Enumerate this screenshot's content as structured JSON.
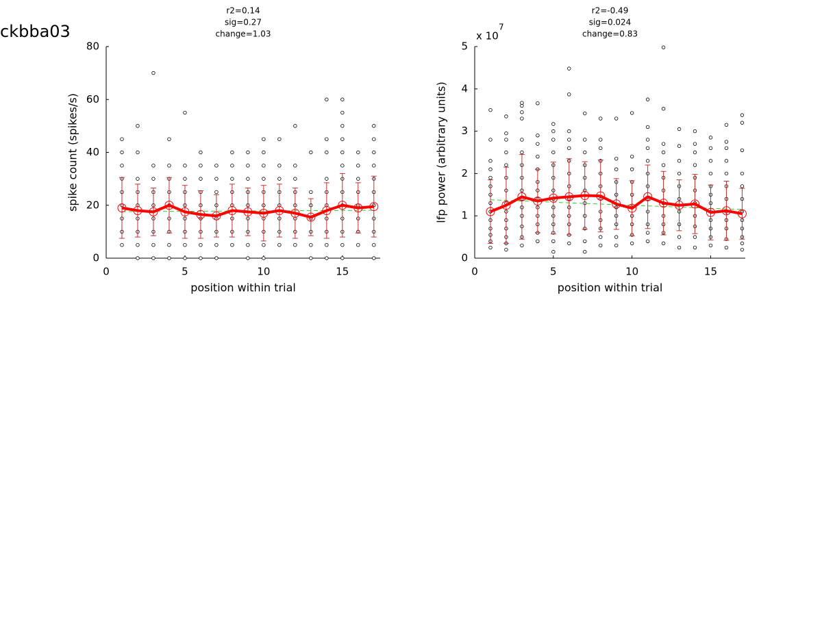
{
  "title": "ckbba03",
  "chart_data": [
    {
      "type": "scatter",
      "title": [
        "r2=0.14",
        "sig=0.27",
        "change=1.03"
      ],
      "x_label": "position within trial",
      "y_label": "spike count (spikes/s)",
      "xlim": [
        0,
        17.4
      ],
      "xticks": [
        0,
        5,
        10,
        15
      ],
      "ylim": [
        0,
        80
      ],
      "yticks": [
        0,
        20,
        40,
        60,
        80
      ],
      "point_color": "#000000",
      "groups": [
        {
          "x": 1,
          "values": [
            5,
            10,
            15,
            20,
            25,
            30,
            35,
            40,
            45
          ]
        },
        {
          "x": 2,
          "values": [
            0,
            5,
            10,
            15,
            20,
            25,
            30,
            40,
            50
          ]
        },
        {
          "x": 3,
          "values": [
            0,
            5,
            10,
            15,
            20,
            25,
            30,
            35,
            70
          ]
        },
        {
          "x": 4,
          "values": [
            0,
            5,
            10,
            15,
            20,
            25,
            30,
            35,
            45
          ]
        },
        {
          "x": 5,
          "values": [
            0,
            5,
            10,
            15,
            20,
            25,
            30,
            35,
            55
          ]
        },
        {
          "x": 6,
          "values": [
            0,
            5,
            10,
            15,
            20,
            25,
            30,
            35,
            40
          ]
        },
        {
          "x": 7,
          "values": [
            0,
            5,
            10,
            15,
            20,
            25,
            30,
            35
          ]
        },
        {
          "x": 8,
          "values": [
            5,
            10,
            15,
            20,
            25,
            30,
            35,
            40
          ]
        },
        {
          "x": 9,
          "values": [
            0,
            5,
            10,
            15,
            20,
            25,
            30,
            35,
            40
          ]
        },
        {
          "x": 10,
          "values": [
            0,
            5,
            10,
            15,
            20,
            25,
            30,
            35,
            40,
            45
          ]
        },
        {
          "x": 11,
          "values": [
            5,
            10,
            15,
            20,
            25,
            30,
            35,
            45
          ]
        },
        {
          "x": 12,
          "values": [
            5,
            10,
            15,
            20,
            25,
            30,
            35,
            50
          ]
        },
        {
          "x": 13,
          "values": [
            0,
            5,
            10,
            15,
            20,
            25,
            40
          ]
        },
        {
          "x": 14,
          "values": [
            0,
            5,
            10,
            15,
            20,
            25,
            30,
            40,
            45,
            60
          ]
        },
        {
          "x": 15,
          "values": [
            0,
            5,
            10,
            15,
            20,
            25,
            30,
            35,
            40,
            45,
            50,
            55,
            60
          ]
        },
        {
          "x": 16,
          "values": [
            5,
            10,
            15,
            20,
            25,
            30,
            35,
            40
          ]
        },
        {
          "x": 17,
          "values": [
            0,
            5,
            10,
            15,
            20,
            25,
            30,
            35,
            40,
            45,
            50
          ]
        }
      ],
      "mean": {
        "color": "#ff0000",
        "error_color": "#c03030",
        "x": [
          1,
          2,
          3,
          4,
          5,
          6,
          7,
          8,
          9,
          10,
          11,
          12,
          13,
          14,
          15,
          16,
          17
        ],
        "values": [
          19,
          18,
          17.5,
          20,
          17.5,
          16.5,
          16,
          18,
          17.5,
          17,
          18,
          17,
          15.5,
          18,
          20,
          19,
          19.5
        ],
        "errors": [
          11.5,
          10,
          9,
          10.5,
          10,
          9,
          8,
          10,
          9,
          10.5,
          10,
          9.5,
          7,
          10.5,
          12,
          9.5,
          11.5
        ]
      },
      "fit": {
        "color": "#33cc33",
        "x": [
          1,
          17
        ],
        "values": [
          17.6,
          18.1
        ]
      }
    },
    {
      "type": "scatter",
      "title": [
        "r2=-0.49",
        "sig=0.024",
        "change=0.83"
      ],
      "x_label": "position within trial",
      "y_label": "lfp power (arbitrary units)",
      "y_multiplier": "x 10",
      "y_multiplier_exponent": "7",
      "xlim": [
        0,
        17.2
      ],
      "xticks": [
        0,
        5,
        10,
        15
      ],
      "ylim": [
        0,
        5
      ],
      "yticks": [
        0,
        1,
        2,
        3,
        4,
        5
      ],
      "point_color": "#000000",
      "groups": [
        {
          "x": 1,
          "values": [
            0.25,
            0.4,
            0.55,
            0.7,
            0.9,
            1.1,
            1.3,
            1.5,
            1.7,
            1.9,
            2.1,
            2.3,
            2.8,
            3.5
          ]
        },
        {
          "x": 2,
          "values": [
            0.2,
            0.35,
            0.5,
            0.7,
            0.9,
            1.1,
            1.3,
            1.6,
            1.9,
            2.2,
            2.5,
            2.8,
            2.95,
            3.35
          ]
        },
        {
          "x": 3,
          "values": [
            0.3,
            0.5,
            0.75,
            1.0,
            1.2,
            1.4,
            1.6,
            1.9,
            2.2,
            2.5,
            2.8,
            3.3,
            3.45,
            3.6,
            3.67
          ]
        },
        {
          "x": 4,
          "values": [
            0.4,
            0.6,
            0.8,
            1.0,
            1.2,
            1.4,
            1.6,
            1.8,
            2.1,
            2.4,
            2.7,
            2.9,
            3.66
          ]
        },
        {
          "x": 5,
          "values": [
            0.15,
            0.4,
            0.6,
            0.8,
            1.0,
            1.2,
            1.4,
            1.6,
            1.9,
            2.2,
            2.5,
            2.8,
            3.0,
            3.17
          ]
        },
        {
          "x": 6,
          "values": [
            0.35,
            0.55,
            0.8,
            1.0,
            1.2,
            1.4,
            1.7,
            2.0,
            2.3,
            2.6,
            2.8,
            3.0,
            3.87,
            4.48
          ]
        },
        {
          "x": 7,
          "values": [
            0.15,
            0.4,
            0.7,
            1.0,
            1.3,
            1.6,
            1.9,
            2.2,
            2.5,
            2.8,
            3.42
          ]
        },
        {
          "x": 8,
          "values": [
            0.3,
            0.5,
            0.7,
            0.9,
            1.1,
            1.4,
            1.7,
            2.0,
            2.3,
            2.6,
            2.8,
            3.3
          ]
        },
        {
          "x": 9,
          "values": [
            0.3,
            0.5,
            0.8,
            1.0,
            1.2,
            1.5,
            1.8,
            2.1,
            2.35,
            3.3
          ]
        },
        {
          "x": 10,
          "values": [
            0.35,
            0.55,
            0.8,
            1.0,
            1.2,
            1.5,
            1.8,
            2.1,
            2.4,
            3.43
          ]
        },
        {
          "x": 11,
          "values": [
            0.4,
            0.6,
            0.8,
            1.1,
            1.4,
            1.7,
            2.0,
            2.3,
            2.6,
            2.8,
            3.1,
            3.75
          ]
        },
        {
          "x": 12,
          "values": [
            0.35,
            0.6,
            0.8,
            1.0,
            1.3,
            1.6,
            1.9,
            2.2,
            2.5,
            2.7,
            3.53,
            4.98
          ]
        },
        {
          "x": 13,
          "values": [
            0.25,
            0.5,
            0.8,
            1.1,
            1.4,
            1.7,
            2.0,
            2.3,
            2.65,
            3.05
          ]
        },
        {
          "x": 14,
          "values": [
            0.25,
            0.5,
            0.75,
            1.0,
            1.3,
            1.6,
            1.9,
            2.2,
            2.5,
            2.7,
            3.0
          ]
        },
        {
          "x": 15,
          "values": [
            0.3,
            0.5,
            0.7,
            0.9,
            1.1,
            1.3,
            1.5,
            1.7,
            2.0,
            2.3,
            2.6,
            2.85
          ]
        },
        {
          "x": 16,
          "values": [
            0.25,
            0.45,
            0.7,
            0.9,
            1.1,
            1.4,
            1.7,
            2.0,
            2.3,
            2.6,
            2.75,
            3.15
          ]
        },
        {
          "x": 17,
          "values": [
            0.2,
            0.35,
            0.5,
            0.7,
            0.9,
            1.1,
            1.4,
            1.7,
            2.0,
            2.55,
            3.2,
            3.38
          ]
        }
      ],
      "mean": {
        "color": "#ff0000",
        "error_color": "#c03030",
        "x": [
          1,
          2,
          3,
          4,
          5,
          6,
          7,
          8,
          9,
          10,
          11,
          12,
          13,
          14,
          15,
          16,
          17
        ],
        "values": [
          1.1,
          1.25,
          1.45,
          1.35,
          1.42,
          1.45,
          1.48,
          1.47,
          1.28,
          1.18,
          1.45,
          1.3,
          1.25,
          1.28,
          1.08,
          1.12,
          1.05
        ],
        "errors": [
          0.75,
          0.9,
          1.0,
          0.75,
          0.85,
          0.9,
          0.8,
          0.85,
          0.6,
          0.65,
          0.75,
          0.75,
          0.6,
          0.7,
          0.65,
          0.7,
          0.6
        ]
      },
      "fit": {
        "color": "#33cc33",
        "x": [
          1,
          17
        ],
        "values": [
          1.38,
          1.15
        ]
      }
    }
  ]
}
